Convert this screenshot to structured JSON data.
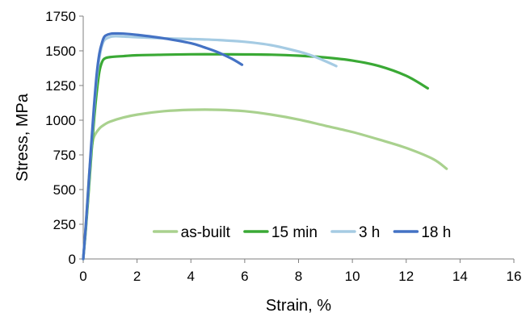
{
  "chart_data": {
    "type": "line",
    "xlabel": "Strain, %",
    "ylabel": "Stress, MPa",
    "xlim": [
      0,
      16
    ],
    "ylim": [
      0,
      1750
    ],
    "xticks": [
      "0",
      "2",
      "4",
      "6",
      "8",
      "10",
      "12",
      "14",
      "16"
    ],
    "yticks": [
      "0",
      "250",
      "500",
      "750",
      "1000",
      "1250",
      "1500",
      "1750"
    ],
    "grid": false,
    "legend_position": "bottom-center",
    "series": [
      {
        "name": "as-built",
        "color": "#a9d18e",
        "x": [
          0,
          0.1,
          0.2,
          0.3,
          0.4,
          0.6,
          0.8,
          1,
          1.5,
          2,
          3,
          4,
          5,
          6,
          7,
          8,
          9,
          10,
          11,
          12,
          13,
          13.5
        ],
        "y": [
          0,
          250,
          550,
          780,
          880,
          940,
          970,
          990,
          1020,
          1040,
          1065,
          1075,
          1075,
          1065,
          1040,
          1005,
          960,
          915,
          860,
          800,
          720,
          650
        ]
      },
      {
        "name": "15 min",
        "color": "#3aa935",
        "x": [
          0,
          0.1,
          0.2,
          0.3,
          0.4,
          0.5,
          0.6,
          0.7,
          0.8,
          1,
          1.5,
          2,
          3,
          4,
          5,
          6,
          7,
          8,
          9,
          10,
          11,
          12,
          12.8
        ],
        "y": [
          0,
          220,
          480,
          750,
          1000,
          1200,
          1350,
          1420,
          1445,
          1455,
          1462,
          1468,
          1472,
          1475,
          1475,
          1474,
          1472,
          1465,
          1452,
          1430,
          1390,
          1320,
          1230
        ]
      },
      {
        "name": "3 h",
        "color": "#a5cbe3",
        "x": [
          0,
          0.1,
          0.2,
          0.3,
          0.4,
          0.5,
          0.6,
          0.7,
          0.8,
          1,
          1.2,
          1.5,
          2,
          3,
          4,
          5,
          6,
          7,
          8,
          8.5,
          9,
          9.4
        ],
        "y": [
          0,
          240,
          520,
          800,
          1070,
          1300,
          1450,
          1540,
          1580,
          1600,
          1605,
          1603,
          1598,
          1590,
          1585,
          1578,
          1565,
          1540,
          1495,
          1465,
          1425,
          1390
        ]
      },
      {
        "name": "18 h",
        "color": "#4472c4",
        "x": [
          0,
          0.1,
          0.2,
          0.3,
          0.4,
          0.5,
          0.6,
          0.7,
          0.8,
          1,
          1.2,
          1.5,
          2,
          3,
          4,
          4.5,
          5,
          5.5,
          5.9
        ],
        "y": [
          0,
          250,
          540,
          830,
          1100,
          1330,
          1480,
          1560,
          1605,
          1622,
          1625,
          1624,
          1615,
          1590,
          1555,
          1525,
          1490,
          1445,
          1400
        ]
      }
    ]
  }
}
